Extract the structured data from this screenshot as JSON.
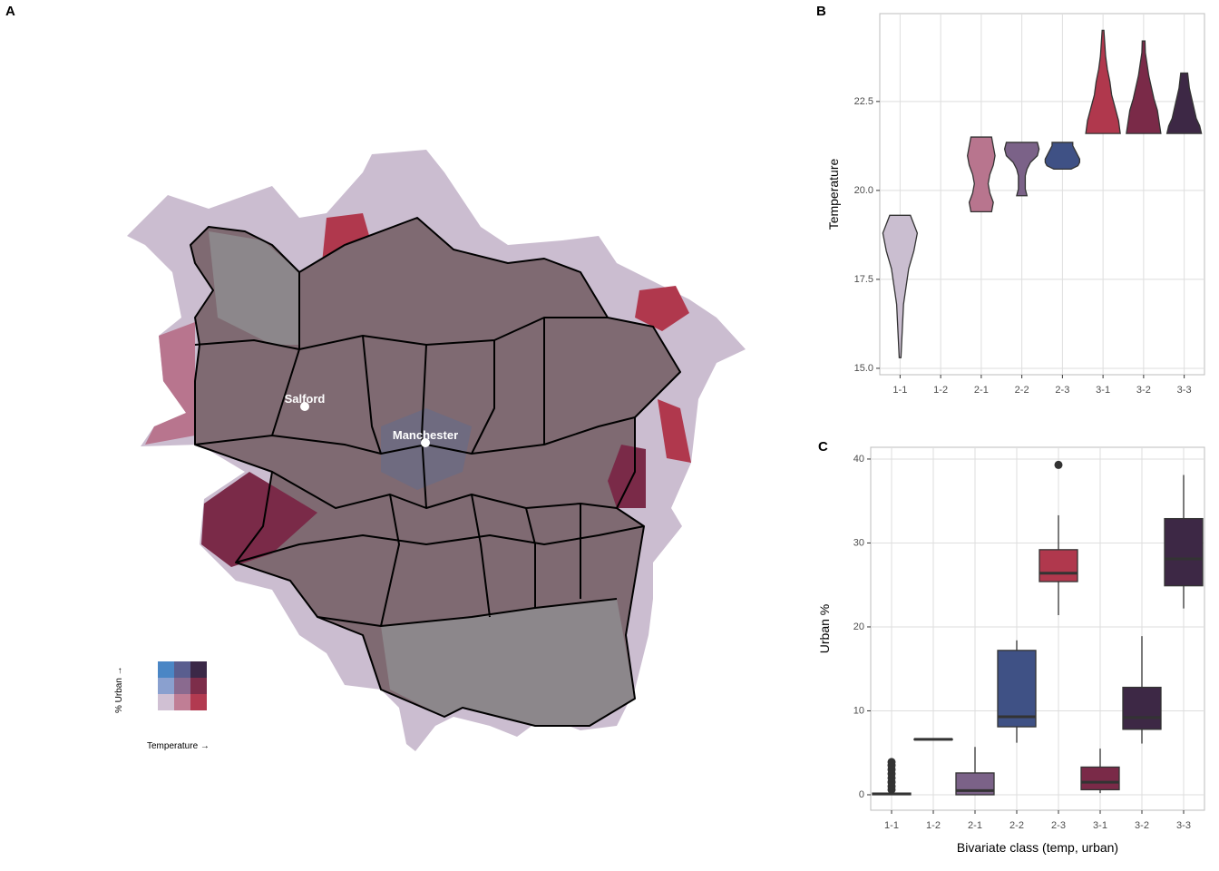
{
  "map": {
    "panel": "A",
    "places": [
      "Salford",
      "Manchester"
    ],
    "legend": {
      "x_label": "Temperature →",
      "y_label": "% Urban →",
      "colors": [
        [
          "#4a86c5",
          "#5a5e8f",
          "#3b2847"
        ],
        [
          "#8aa0cf",
          "#8a6a8f",
          "#7d2d4a"
        ],
        [
          "#d0c0d3",
          "#c07e95",
          "#b23a50"
        ]
      ]
    }
  },
  "chart_data": [
    {
      "type": "violin",
      "panel": "B",
      "ylabel": "Temperature",
      "categories": [
        "1-1",
        "1-2",
        "2-1",
        "2-2",
        "2-3",
        "3-1",
        "3-2",
        "3-3"
      ],
      "ylim": [
        14.82,
        24.97
      ],
      "yticks": [
        {
          "value": 15,
          "label": "15.0"
        },
        17.5,
        {
          "value": 20,
          "label": "20.0"
        },
        22.5
      ],
      "grid": true,
      "violins": [
        {
          "color": "#cabed0",
          "min": 15.3,
          "max": 19.3,
          "density": [
            0.05,
            0.1,
            0.15,
            0.2,
            0.35,
            0.5,
            0.8,
            1,
            0.6
          ]
        },
        null,
        {
          "color": "#b8758e",
          "min": 19.4,
          "max": 21.5,
          "density": [
            0.6,
            0.7,
            0.5,
            0.4,
            0.5,
            0.7,
            0.8,
            0.7,
            0.6
          ]
        },
        {
          "color": "#7b6288",
          "min": 19.85,
          "max": 21.35,
          "density": [
            0.3,
            0.2,
            0.2,
            0.2,
            0.3,
            0.5,
            0.9,
            1,
            0.9
          ]
        },
        {
          "color": "#3f5185",
          "min": 20.6,
          "max": 21.35,
          "density": [
            0.5,
            0.9,
            1,
            1,
            0.9,
            0.8,
            0.7,
            0.6,
            0.6
          ]
        },
        {
          "color": "#b0384d",
          "min": 21.6,
          "max": 24.5,
          "density": [
            1,
            0.9,
            0.7,
            0.5,
            0.4,
            0.25,
            0.15,
            0.1,
            0.05
          ]
        },
        {
          "color": "#7a2a48",
          "min": 21.6,
          "max": 24.2,
          "density": [
            1,
            0.9,
            0.8,
            0.6,
            0.45,
            0.3,
            0.2,
            0.1,
            0.08
          ]
        },
        {
          "color": "#3d2845",
          "min": 21.6,
          "max": 23.3,
          "density": [
            1,
            0.9,
            0.7,
            0.6,
            0.5,
            0.4,
            0.3,
            0.25,
            0.2
          ]
        }
      ]
    },
    {
      "type": "box",
      "panel": "C",
      "ylabel": "Urban %",
      "xlabel": "Bivariate class (temp, urban)",
      "categories": [
        "1-1",
        "1-2",
        "2-1",
        "2-2",
        "2-3",
        "3-1",
        "3-2",
        "3-3"
      ],
      "ylim": [
        -1.84,
        41.4
      ],
      "yticks": [
        0,
        10,
        20,
        30,
        40
      ],
      "grid": true,
      "boxes": [
        {
          "color": "#cabed0",
          "min": 0,
          "q1": 0,
          "median": 0.1,
          "q3": 0.2,
          "max": 0.4,
          "outliers": [
            0.6,
            1.0,
            1.5,
            2.0,
            2.5,
            3.0,
            3.5,
            3.9
          ]
        },
        {
          "color": "#3f5185",
          "min": 6.5,
          "q1": 6.55,
          "median": 6.6,
          "q3": 6.65,
          "max": 6.7
        },
        {
          "color": "#7b6288",
          "min": 0,
          "q1": 0,
          "median": 0.5,
          "q3": 2.6,
          "max": 5.7
        },
        {
          "color": "#3f5185",
          "min": 6.2,
          "q1": 8.1,
          "median": 9.3,
          "q3": 17.2,
          "max": 18.4
        },
        {
          "color": "#b0384d",
          "min": 21.4,
          "q1": 25.4,
          "median": 26.4,
          "q3": 29.2,
          "max": 33.3,
          "outliers": [
            39.3
          ]
        },
        {
          "color": "#7a2a48",
          "min": 0.2,
          "q1": 0.6,
          "median": 1.5,
          "q3": 3.3,
          "max": 5.5
        },
        {
          "color": "#3d2845",
          "min": 6.1,
          "q1": 7.8,
          "median": 9.2,
          "q3": 12.8,
          "max": 18.9
        },
        {
          "color": "#3d2845",
          "min": 22.2,
          "q1": 24.9,
          "median": 28.1,
          "q3": 32.9,
          "max": 38.1
        }
      ]
    }
  ]
}
